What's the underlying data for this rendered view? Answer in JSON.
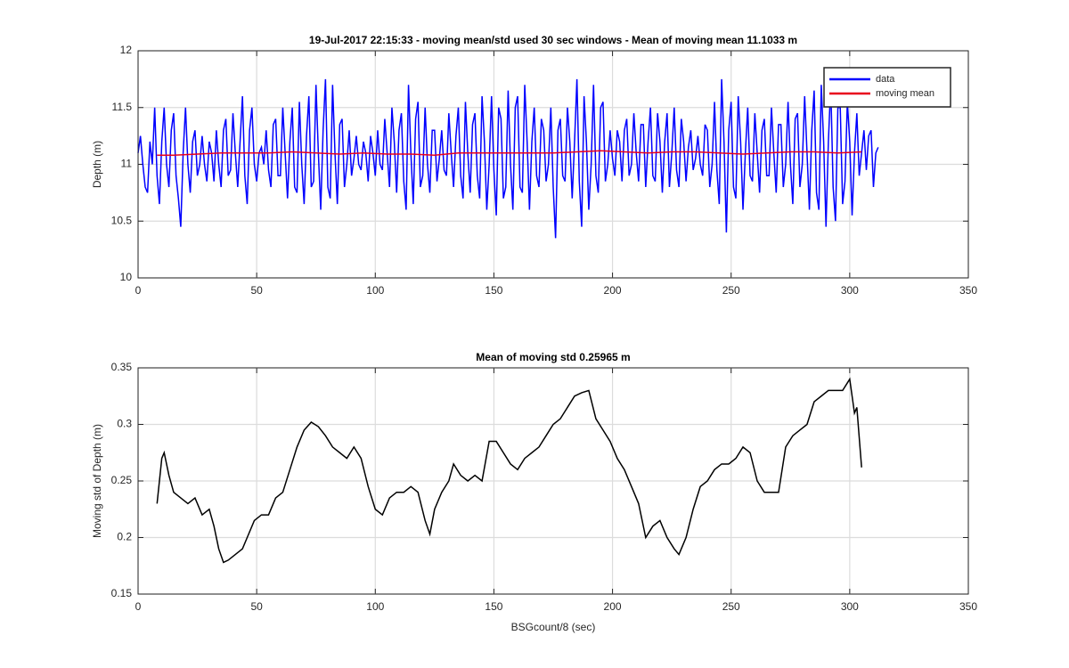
{
  "chart_data": [
    {
      "type": "line",
      "title": "19-Jul-2017 22:15:33 - moving mean/std used 30 sec windows - Mean of moving mean 11.1033 m",
      "y_label": "Depth (m)",
      "xlim": [
        0,
        350
      ],
      "xticks": [
        0,
        50,
        100,
        150,
        200,
        250,
        300,
        350
      ],
      "ylim": [
        10,
        12
      ],
      "yticks": [
        10,
        10.5,
        11,
        11.5,
        12
      ],
      "grid": true,
      "legend": "upper right",
      "series": [
        {
          "name": "data",
          "color": "#0000ff",
          "x": [
            0,
            1,
            2,
            3,
            4,
            5,
            6,
            7,
            8,
            9,
            10,
            11,
            12,
            13,
            14,
            15,
            16,
            17,
            18,
            19,
            20,
            21,
            22,
            23,
            24,
            25,
            26,
            27,
            28,
            29,
            30,
            31,
            32,
            33,
            34,
            35,
            36,
            37,
            38,
            39,
            40,
            41,
            42,
            43,
            44,
            45,
            46,
            47,
            48,
            49,
            50,
            51,
            52,
            53,
            54,
            55,
            56,
            57,
            58,
            59,
            60,
            61,
            62,
            63,
            64,
            65,
            66,
            67,
            68,
            69,
            70,
            71,
            72,
            73,
            74,
            75,
            76,
            77,
            78,
            79,
            80,
            81,
            82,
            83,
            84,
            85,
            86,
            87,
            88,
            89,
            90,
            91,
            92,
            93,
            94,
            95,
            96,
            97,
            98,
            99,
            100,
            101,
            102,
            103,
            104,
            105,
            106,
            107,
            108,
            109,
            110,
            111,
            112,
            113,
            114,
            115,
            116,
            117,
            118,
            119,
            120,
            121,
            122,
            123,
            124,
            125,
            126,
            127,
            128,
            129,
            130,
            131,
            132,
            133,
            134,
            135,
            136,
            137,
            138,
            139,
            140,
            141,
            142,
            143,
            144,
            145,
            146,
            147,
            148,
            149,
            150,
            151,
            152,
            153,
            154,
            155,
            156,
            157,
            158,
            159,
            160,
            161,
            162,
            163,
            164,
            165,
            166,
            167,
            168,
            169,
            170,
            171,
            172,
            173,
            174,
            175,
            176,
            177,
            178,
            179,
            180,
            181,
            182,
            183,
            184,
            185,
            186,
            187,
            188,
            189,
            190,
            191,
            192,
            193,
            194,
            195,
            196,
            197,
            198,
            199,
            200,
            201,
            202,
            203,
            204,
            205,
            206,
            207,
            208,
            209,
            210,
            211,
            212,
            213,
            214,
            215,
            216,
            217,
            218,
            219,
            220,
            221,
            222,
            223,
            224,
            225,
            226,
            227,
            228,
            229,
            230,
            231,
            232,
            233,
            234,
            235,
            236,
            237,
            238,
            239,
            240,
            241,
            242,
            243,
            244,
            245,
            246,
            247,
            248,
            249,
            250,
            251,
            252,
            253,
            254,
            255,
            256,
            257,
            258,
            259,
            260,
            261,
            262,
            263,
            264,
            265,
            266,
            267,
            268,
            269,
            270,
            271,
            272,
            273,
            274,
            275,
            276,
            277,
            278,
            279,
            280,
            281,
            282,
            283,
            284,
            285,
            286,
            287,
            288,
            289,
            290,
            291,
            292,
            293,
            294,
            295,
            296,
            297,
            298,
            299,
            300,
            301,
            302,
            303,
            304,
            305,
            306,
            307,
            308,
            309,
            310,
            311,
            312
          ],
          "values": [
            11.1,
            11.25,
            11.0,
            10.8,
            10.75,
            11.2,
            11.0,
            11.5,
            10.9,
            10.65,
            11.2,
            11.5,
            11.0,
            10.8,
            11.3,
            11.45,
            10.9,
            10.7,
            10.45,
            11.1,
            11.5,
            11.0,
            10.75,
            11.2,
            11.3,
            10.9,
            11.0,
            11.25,
            11.0,
            10.85,
            11.2,
            11.1,
            10.85,
            11.3,
            11.0,
            10.8,
            11.3,
            11.4,
            10.9,
            10.95,
            11.45,
            11.1,
            10.8,
            11.2,
            11.6,
            10.9,
            10.65,
            11.3,
            11.5,
            11.0,
            10.85,
            11.1,
            11.15,
            11.0,
            11.3,
            10.95,
            10.8,
            11.35,
            11.4,
            10.9,
            10.9,
            11.5,
            11.1,
            10.7,
            11.2,
            11.5,
            10.8,
            10.75,
            11.55,
            11.0,
            10.65,
            11.25,
            11.6,
            10.8,
            10.85,
            11.7,
            11.1,
            10.6,
            11.3,
            11.75,
            10.8,
            10.7,
            11.7,
            11.1,
            10.65,
            11.35,
            11.4,
            10.8,
            11.0,
            11.3,
            10.9,
            11.05,
            11.25,
            11.0,
            10.95,
            11.2,
            11.1,
            10.85,
            11.25,
            11.1,
            10.9,
            11.3,
            11.0,
            10.95,
            11.4,
            11.1,
            10.8,
            11.5,
            11.2,
            10.75,
            11.3,
            11.45,
            10.85,
            10.6,
            11.7,
            11.1,
            10.65,
            11.4,
            11.55,
            10.8,
            10.9,
            11.5,
            11.0,
            10.75,
            11.3,
            11.3,
            10.85,
            11.05,
            11.3,
            10.95,
            10.9,
            11.45,
            11.1,
            10.8,
            11.25,
            11.5,
            10.9,
            10.7,
            11.55,
            11.1,
            10.75,
            11.35,
            11.45,
            10.9,
            10.7,
            11.6,
            11.2,
            10.6,
            11.0,
            11.6,
            10.95,
            10.55,
            11.5,
            11.4,
            10.7,
            10.8,
            11.65,
            11.0,
            10.6,
            11.5,
            11.6,
            10.8,
            10.75,
            11.7,
            11.2,
            10.6,
            11.2,
            11.5,
            10.9,
            10.8,
            11.4,
            11.3,
            10.85,
            11.0,
            11.5,
            10.8,
            10.35,
            11.3,
            11.4,
            10.9,
            10.85,
            11.5,
            11.2,
            10.7,
            11.2,
            11.75,
            10.85,
            10.45,
            11.6,
            11.2,
            10.6,
            11.0,
            11.7,
            10.9,
            10.75,
            11.5,
            11.55,
            10.85,
            11.0,
            11.3,
            11.05,
            10.9,
            11.3,
            11.2,
            10.85,
            11.3,
            11.4,
            10.9,
            11.0,
            11.45,
            11.1,
            10.85,
            11.35,
            11.35,
            10.8,
            11.2,
            11.5,
            10.9,
            10.85,
            11.45,
            11.2,
            10.75,
            11.2,
            11.45,
            10.8,
            11.1,
            11.5,
            10.95,
            10.8,
            11.4,
            11.2,
            10.85,
            11.15,
            11.3,
            10.95,
            11.05,
            11.25,
            11.0,
            10.9,
            11.35,
            11.3,
            10.8,
            11.0,
            11.55,
            10.95,
            10.65,
            11.75,
            11.2,
            10.4,
            11.3,
            11.55,
            10.8,
            10.7,
            11.6,
            11.2,
            10.6,
            11.1,
            11.5,
            10.9,
            10.85,
            11.45,
            11.1,
            10.75,
            11.3,
            11.4,
            10.9,
            10.9,
            11.5,
            11.1,
            10.75,
            11.35,
            11.35,
            10.8,
            11.0,
            11.55,
            11.0,
            10.65,
            11.4,
            11.45,
            10.8,
            11.0,
            11.6,
            11.1,
            10.6,
            11.3,
            11.65,
            10.75,
            10.6,
            11.7,
            11.2,
            10.45,
            11.2,
            11.7,
            10.8,
            10.5,
            11.5,
            11.5,
            10.65,
            10.85,
            11.55,
            11.2,
            10.55,
            11.1,
            11.45,
            10.9,
            11.1,
            11.3,
            10.95,
            11.25,
            11.3,
            10.8,
            11.1,
            11.15
          ]
        },
        {
          "name": "moving mean",
          "color": "#e8001c",
          "x": [
            8,
            15,
            25,
            35,
            45,
            55,
            65,
            75,
            85,
            95,
            105,
            115,
            125,
            135,
            145,
            155,
            165,
            175,
            185,
            195,
            205,
            215,
            225,
            235,
            245,
            255,
            265,
            275,
            285,
            295,
            305
          ],
          "values": [
            11.08,
            11.08,
            11.09,
            11.1,
            11.1,
            11.1,
            11.11,
            11.1,
            11.09,
            11.1,
            11.09,
            11.09,
            11.08,
            11.1,
            11.1,
            11.1,
            11.1,
            11.1,
            11.11,
            11.12,
            11.11,
            11.1,
            11.11,
            11.11,
            11.1,
            11.09,
            11.1,
            11.11,
            11.11,
            11.1,
            11.11
          ]
        }
      ]
    },
    {
      "type": "line",
      "title": "Mean of moving std 0.25965 m",
      "x_label": "BSGcount/8 (sec)",
      "y_label": "Moving std of Depth (m)",
      "xlim": [
        0,
        350
      ],
      "xticks": [
        0,
        50,
        100,
        150,
        200,
        250,
        300,
        350
      ],
      "ylim": [
        0.15,
        0.35
      ],
      "yticks": [
        0.15,
        0.2,
        0.25,
        0.3,
        0.35
      ],
      "grid": true,
      "series": [
        {
          "color": "#000000",
          "x": [
            8,
            9,
            10,
            11,
            13,
            15,
            18,
            21,
            24,
            27,
            30,
            32,
            34,
            36,
            38,
            41,
            44,
            46,
            49,
            52,
            55,
            58,
            61,
            64,
            67,
            70,
            73,
            76,
            79,
            82,
            85,
            88,
            91,
            94,
            97,
            100,
            103,
            106,
            109,
            112,
            115,
            118,
            121,
            123,
            125,
            128,
            131,
            133,
            136,
            139,
            142,
            145,
            148,
            151,
            154,
            157,
            160,
            163,
            166,
            169,
            172,
            175,
            178,
            181,
            184,
            187,
            190,
            193,
            196,
            199,
            202,
            205,
            208,
            211,
            214,
            217,
            220,
            223,
            226,
            228,
            231,
            234,
            237,
            240,
            243,
            246,
            249,
            252,
            255,
            258,
            261,
            264,
            267,
            270,
            273,
            276,
            279,
            282,
            285,
            288,
            291,
            294,
            297,
            300,
            302,
            303,
            305
          ],
          "values": [
            0.23,
            0.25,
            0.27,
            0.275,
            0.255,
            0.24,
            0.235,
            0.23,
            0.235,
            0.22,
            0.225,
            0.21,
            0.19,
            0.178,
            0.18,
            0.185,
            0.19,
            0.2,
            0.215,
            0.22,
            0.22,
            0.235,
            0.24,
            0.26,
            0.28,
            0.295,
            0.302,
            0.298,
            0.29,
            0.28,
            0.275,
            0.27,
            0.28,
            0.27,
            0.245,
            0.225,
            0.22,
            0.235,
            0.24,
            0.24,
            0.245,
            0.24,
            0.215,
            0.203,
            0.225,
            0.24,
            0.25,
            0.265,
            0.255,
            0.25,
            0.255,
            0.25,
            0.285,
            0.285,
            0.275,
            0.265,
            0.26,
            0.27,
            0.275,
            0.28,
            0.29,
            0.3,
            0.305,
            0.315,
            0.325,
            0.328,
            0.33,
            0.305,
            0.295,
            0.285,
            0.27,
            0.26,
            0.245,
            0.23,
            0.2,
            0.21,
            0.215,
            0.2,
            0.19,
            0.185,
            0.2,
            0.225,
            0.245,
            0.25,
            0.26,
            0.265,
            0.265,
            0.27,
            0.28,
            0.275,
            0.25,
            0.24,
            0.24,
            0.24,
            0.28,
            0.29,
            0.295,
            0.3,
            0.32,
            0.325,
            0.33,
            0.33,
            0.33,
            0.34,
            0.31,
            0.315,
            0.262
          ]
        }
      ]
    }
  ]
}
